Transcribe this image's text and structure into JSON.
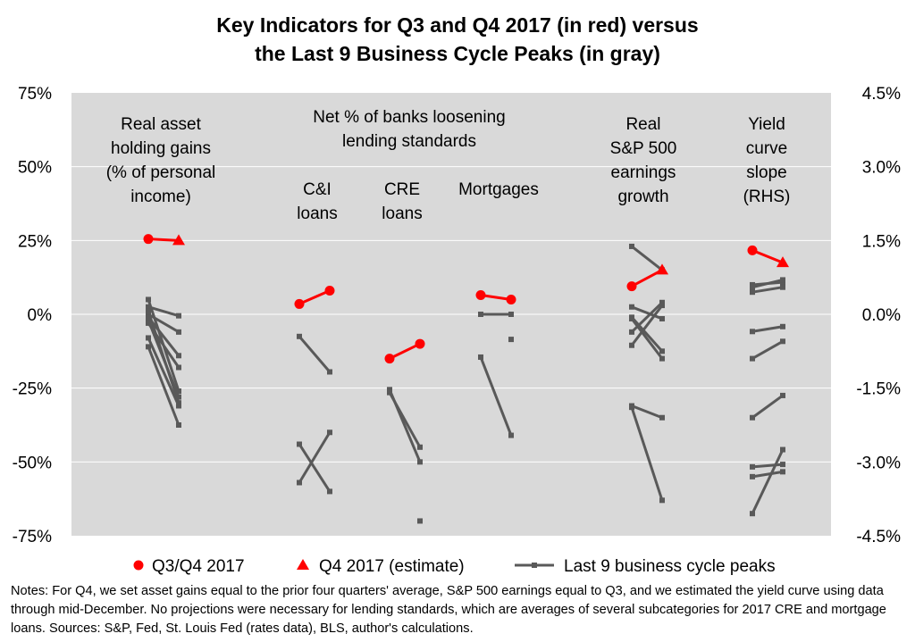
{
  "title": {
    "line1": "Key Indicators for Q3 and Q4 2017 (in red) versus",
    "line2": "the Last 9 Business Cycle Peaks (in gray)"
  },
  "notes": "Notes: For Q4, we set asset gains equal to the prior four quarters' average, S&P 500 earnings equal to Q3, and we estimated the yield curve using data through mid-December. No projections were necessary for lending standards, which are averages of several subcategories for 2017 CRE and mortgage loans. Sources: S&P, Fed, St. Louis Fed (rates data), BLS, author's calculations.",
  "colors": {
    "red": "#ff0000",
    "gray": "#595959",
    "plot_bg": "#d9d9d9",
    "grid": "#ffffff"
  },
  "chart_data": {
    "type": "line",
    "left_axis": {
      "min": -75,
      "max": 75,
      "ticks": [
        "75%",
        "50%",
        "25%",
        "0%",
        "-25%",
        "-50%",
        "-75%"
      ]
    },
    "right_axis": {
      "min": -4.5,
      "max": 4.5,
      "ticks": [
        "4.5%",
        "3.0%",
        "1.5%",
        "0.0%",
        "-1.5%",
        "-3.0%",
        "-4.5%"
      ]
    },
    "grid": true,
    "legend": {
      "position": "bottom",
      "items": [
        "Q3/Q4 2017",
        "Q4 2017 (estimate)",
        "Last 9 business cycle peaks"
      ]
    },
    "annotations": {
      "assets": [
        "Real asset",
        "holding gains",
        "(% of personal",
        "income)"
      ],
      "banks": [
        "Net % of banks loosening",
        "lending standards"
      ],
      "ci": [
        "C&I",
        "loans"
      ],
      "cre": [
        "CRE",
        "loans"
      ],
      "mortgages": [
        "Mortgages"
      ],
      "sp": [
        "Real",
        "S&P 500",
        "earnings",
        "growth"
      ],
      "yield": [
        "Yield",
        "curve",
        "slope",
        "(RHS)"
      ]
    },
    "groups": [
      {
        "name": "Real asset holding gains",
        "axis": "left",
        "current": {
          "q3": 25.5,
          "q4": 25,
          "q4_estimate": true
        },
        "peaks": [
          [
            5,
            -26
          ],
          [
            2.5,
            -0.5
          ],
          [
            1,
            -30
          ],
          [
            0,
            -6
          ],
          [
            -1,
            -14
          ],
          [
            -2,
            -28
          ],
          [
            -3,
            -18
          ],
          [
            -8,
            -31
          ],
          [
            -11,
            -37.5
          ]
        ]
      },
      {
        "name": "C&I loans",
        "axis": "left",
        "current": {
          "q3": 3.5,
          "q4": 8,
          "q4_estimate": false
        },
        "peaks": [
          [
            -7.5,
            -19.5
          ],
          [
            -44,
            -60
          ],
          [
            -57,
            -40
          ]
        ]
      },
      {
        "name": "CRE loans",
        "axis": "left",
        "current": {
          "q3": -15,
          "q4": -10,
          "q4_estimate": false
        },
        "peaks": [
          [
            -25.5,
            -50
          ],
          [
            -26.5,
            -45
          ],
          [
            null,
            -70
          ]
        ]
      },
      {
        "name": "Mortgages",
        "axis": "left",
        "current": {
          "q3": 6.5,
          "q4": 5,
          "q4_estimate": false
        },
        "peaks": [
          [
            0,
            0
          ],
          [
            -14.5,
            -41
          ],
          [
            null,
            -8.5
          ]
        ]
      },
      {
        "name": "Real S&P 500 earnings growth",
        "axis": "left",
        "current": {
          "q3": 9.5,
          "q4": 15,
          "q4_estimate": true
        },
        "peaks": [
          [
            23,
            15
          ],
          [
            2.5,
            -1.5
          ],
          [
            -1,
            -12.5
          ],
          [
            -1.5,
            -15
          ],
          [
            -6,
            4
          ],
          [
            -10.5,
            3
          ],
          [
            -31,
            -35
          ],
          [
            -31.5,
            -63
          ]
        ]
      },
      {
        "name": "Yield curve slope (RHS)",
        "axis": "right",
        "current": {
          "q3": 1.3,
          "q4": 1.05,
          "q4_estimate": true
        },
        "peaks": [
          [
            0.6,
            0.65
          ],
          [
            0.55,
            0.7
          ],
          [
            0.45,
            0.55
          ],
          [
            -0.35,
            -0.25
          ],
          [
            -0.9,
            -0.55
          ],
          [
            -2.1,
            -1.65
          ],
          [
            -3.1,
            -3.05
          ],
          [
            -3.3,
            -3.2
          ],
          [
            -4.05,
            -2.75
          ]
        ]
      }
    ]
  }
}
